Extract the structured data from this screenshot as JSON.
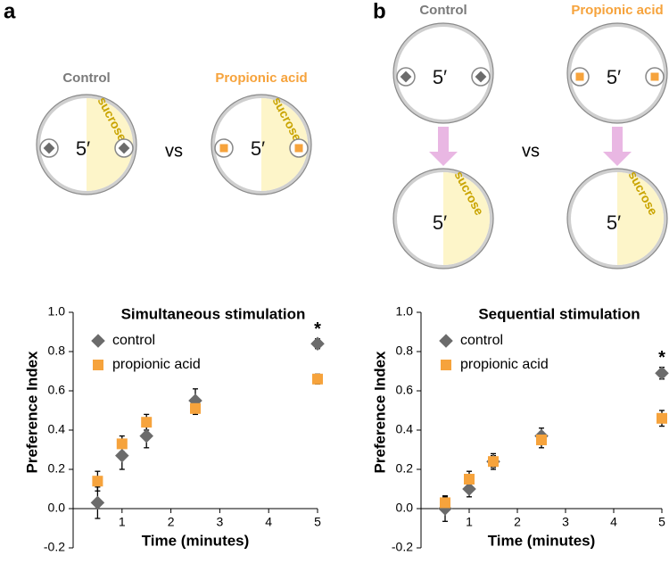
{
  "diagrams": {
    "a": {
      "label": "a",
      "control": "Control",
      "propionic": "Propionic acid",
      "sucrose": "sucrose",
      "time": "5′",
      "vs": "vs"
    },
    "b": {
      "label": "b",
      "control": "Control",
      "propionic": "Propionic acid",
      "sucrose": "sucrose",
      "time": "5′",
      "vs": "vs"
    }
  },
  "chart_data": [
    {
      "type": "scatter",
      "title": "Simultaneous stimulation",
      "x_label": "Time (minutes)",
      "y_label": "Preference Index",
      "x": [
        0.5,
        1,
        1.5,
        2.5,
        5
      ],
      "series": [
        {
          "name": "control",
          "color": "#6b6b6b",
          "marker": "diamond",
          "values": [
            0.03,
            0.27,
            0.37,
            0.55,
            0.84
          ],
          "errors": [
            0.08,
            0.07,
            0.06,
            0.06,
            0.025
          ]
        },
        {
          "name": "propionic acid",
          "color": "#f6a33c",
          "marker": "square",
          "values": [
            0.14,
            0.33,
            0.44,
            0.51,
            0.66
          ],
          "errors": [
            0.05,
            0.04,
            0.04,
            0.03,
            0.025
          ]
        }
      ],
      "annotation": "*",
      "xlim": [
        0,
        5
      ],
      "xticks": [
        1,
        2,
        3,
        4,
        5
      ],
      "ylim": [
        -0.2,
        1
      ],
      "yticks": [
        {
          "value": -0.2,
          "label": "-0.2"
        },
        {
          "value": 0,
          "label": "0.0"
        },
        0.2,
        0.4,
        0.6,
        0.8,
        {
          "value": 1,
          "label": "1.0"
        }
      ],
      "legend": "upper left"
    },
    {
      "type": "scatter",
      "title": "Sequential stimulation",
      "x_label": "Time (minutes)",
      "y_label": "Preference Index",
      "x": [
        0.5,
        1,
        1.5,
        2.5,
        5
      ],
      "series": [
        {
          "name": "control",
          "color": "#6b6b6b",
          "marker": "diamond",
          "values": [
            0.0,
            0.1,
            0.24,
            0.37,
            0.69
          ],
          "errors": [
            0.065,
            0.04,
            0.04,
            0.04,
            0.03
          ]
        },
        {
          "name": "propionic acid",
          "color": "#f6a33c",
          "marker": "square",
          "values": [
            0.03,
            0.15,
            0.24,
            0.35,
            0.46
          ],
          "errors": [
            0.03,
            0.04,
            0.03,
            0.04,
            0.04
          ]
        }
      ],
      "annotation": "*",
      "xlim": [
        0,
        5
      ],
      "xticks": [
        1,
        2,
        3,
        4,
        5
      ],
      "ylim": [
        -0.2,
        1
      ],
      "yticks": [
        {
          "value": -0.2,
          "label": "-0.2"
        },
        {
          "value": 0,
          "label": "0.0"
        },
        0.2,
        0.4,
        0.6,
        0.8,
        {
          "value": 1,
          "label": "1.0"
        }
      ],
      "legend": "upper left"
    }
  ]
}
